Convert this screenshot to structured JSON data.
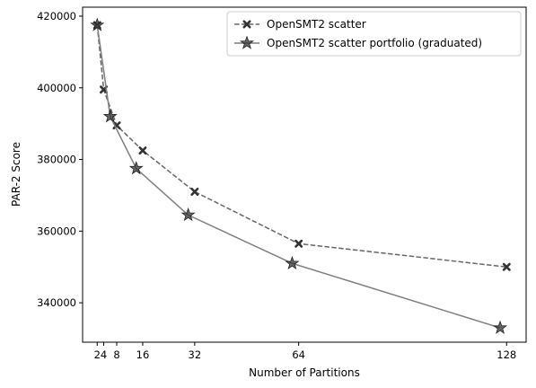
{
  "chart_data": {
    "type": "line",
    "title": "",
    "xlabel": "Number of Partitions",
    "ylabel": "PAR-2 Score",
    "x_ticks": [
      2,
      4,
      8,
      16,
      32,
      64,
      128
    ],
    "x_tick_labels": [
      "2",
      "4",
      "8",
      "16",
      "32",
      "64",
      "128"
    ],
    "y_ticks": [
      340000,
      360000,
      380000,
      400000,
      420000
    ],
    "y_tick_labels": [
      "340000",
      "360000",
      "380000",
      "400000",
      "420000"
    ],
    "xlim": [
      -2.5,
      134
    ],
    "ylim": [
      329000,
      422500
    ],
    "grid": false,
    "legend_position": "top-right",
    "series": [
      {
        "name": "OpenSMT2 scatter",
        "style": "dashed",
        "marker": "x",
        "color": "#666666",
        "x": [
          2,
          4,
          8,
          16,
          32,
          64,
          128
        ],
        "y": [
          417500,
          399500,
          389500,
          382500,
          371000,
          356500,
          350000
        ]
      },
      {
        "name": "OpenSMT2 scatter portfolio (graduated)",
        "style": "solid",
        "marker": "star",
        "color": "#7f7f7f",
        "x": [
          2,
          6,
          14,
          30,
          62,
          126
        ],
        "y": [
          417500,
          392000,
          377500,
          364500,
          351000,
          333000
        ]
      }
    ]
  }
}
